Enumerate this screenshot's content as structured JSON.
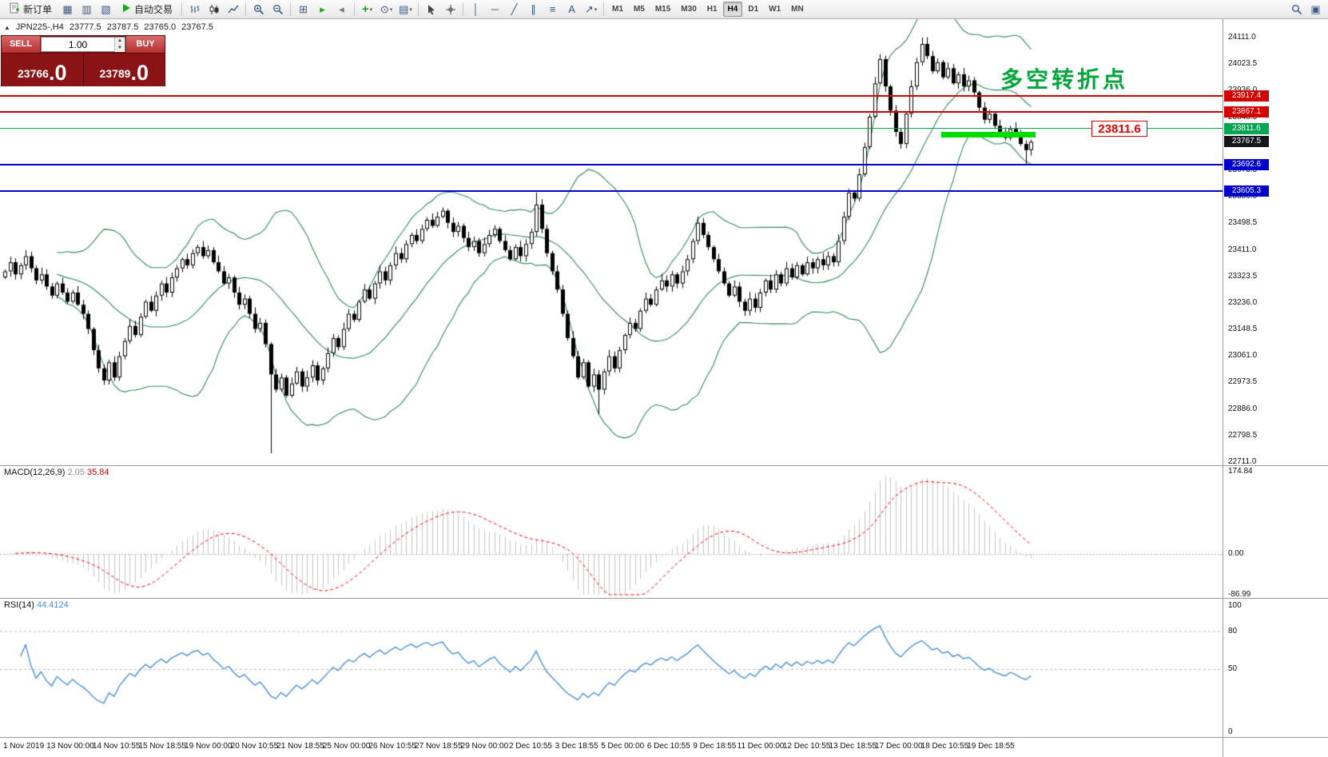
{
  "toolbar": {
    "new_order_label": "新订单",
    "auto_trading_label": "自动交易",
    "timeframes": [
      "M1",
      "M5",
      "M15",
      "M30",
      "H1",
      "H4",
      "D1",
      "W1",
      "MN"
    ],
    "active_timeframe": "H4",
    "items": [
      {
        "type": "button",
        "name": "new-order-button",
        "svg": "order",
        "label": "新订单"
      },
      {
        "type": "icon",
        "name": "market-watch-icon",
        "glyph": "▦"
      },
      {
        "type": "icon",
        "name": "data-window-icon",
        "glyph": "▥"
      },
      {
        "type": "icon",
        "name": "navigator-icon",
        "glyph": "▧"
      },
      {
        "type": "button",
        "name": "auto-trading-button",
        "svg": "play",
        "label": "自动交易"
      },
      {
        "type": "sep"
      },
      {
        "type": "icon",
        "name": "bar-chart-icon",
        "svg": "bars"
      },
      {
        "type": "icon",
        "name": "candlestick-chart-icon",
        "svg": "candles"
      },
      {
        "type": "icon",
        "name": "line-chart-icon",
        "svg": "linechart"
      },
      {
        "type": "sep"
      },
      {
        "type": "icon",
        "name": "zoom-in-icon",
        "svg": "zoomin"
      },
      {
        "type": "icon",
        "name": "zoom-out-icon",
        "svg": "zoomout"
      },
      {
        "type": "sep"
      },
      {
        "type": "icon",
        "name": "tile-windows-icon",
        "glyph": "⊞"
      },
      {
        "type": "icon",
        "name": "auto-scroll-icon",
        "glyph": "▸",
        "color": "#1fa31f"
      },
      {
        "type": "icon",
        "name": "chart-shift-icon",
        "glyph": "◂",
        "color": "#777777"
      },
      {
        "type": "sep"
      },
      {
        "type": "icon",
        "name": "indicators-icon",
        "glyph": "+",
        "color": "#1fa31f",
        "caret": true
      },
      {
        "type": "icon",
        "name": "periods-icon",
        "glyph": "⊙",
        "caret": true
      },
      {
        "type": "icon",
        "name": "templates-icon",
        "glyph": "▤",
        "caret": true
      },
      {
        "type": "sep"
      },
      {
        "type": "icon",
        "name": "cursor-icon",
        "svg": "cursor"
      },
      {
        "type": "icon",
        "name": "crosshair-icon",
        "svg": "crosshair"
      },
      {
        "type": "sep"
      },
      {
        "type": "icon",
        "name": "vertical-line-icon",
        "glyph": "│"
      },
      {
        "type": "icon",
        "name": "horizontal-line-icon",
        "glyph": "─"
      },
      {
        "type": "icon",
        "name": "trendline-icon",
        "glyph": "╱"
      },
      {
        "type": "icon",
        "name": "channel-icon",
        "glyph": "∥"
      },
      {
        "type": "icon",
        "name": "fibonacci-icon",
        "glyph": "≡"
      },
      {
        "type": "icon",
        "name": "text-icon",
        "glyph": "A"
      },
      {
        "type": "icon",
        "name": "arrows-icon",
        "glyph": "↗",
        "caret": true
      },
      {
        "type": "sep"
      },
      {
        "type": "timeframes"
      },
      {
        "type": "spacer"
      },
      {
        "type": "icon",
        "name": "search-icon",
        "svg": "search"
      },
      {
        "type": "icon",
        "name": "window-list-icon",
        "glyph": "▣"
      }
    ]
  },
  "symbol_info": {
    "symbol": "JPN225-,H4",
    "open": "23777.5",
    "high": "23787.5",
    "low": "23765.0",
    "close": "23767.5"
  },
  "trade_panel": {
    "sell_label": "SELL",
    "buy_label": "BUY",
    "volume": "1.00",
    "sell_price_main": "23766",
    "sell_price_frac": ".0",
    "buy_price_main": "23789",
    "buy_price_frac": ".0"
  },
  "annotations": {
    "turning_point_text": "多空转折点",
    "price_callout": "23811.6"
  },
  "levels": {
    "lines": [
      {
        "value": 23917.4,
        "color": "#d40000",
        "width": 2
      },
      {
        "value": 23867.1,
        "color": "#d40000",
        "width": 2
      },
      {
        "value": 23811.6,
        "color": "#00a651",
        "width": 1.5
      },
      {
        "value": 23692.6,
        "color": "#0000cd",
        "width": 2
      },
      {
        "value": 23605.3,
        "color": "#0000cd",
        "width": 2
      }
    ]
  },
  "price_axis": {
    "badges": [
      {
        "value": 23917.4,
        "label": "23917.4",
        "color": "#d40000"
      },
      {
        "value": 23867.1,
        "label": "23867.1",
        "color": "#d40000"
      },
      {
        "value": 23811.6,
        "label": "23811.6",
        "color": "#00a651"
      },
      {
        "value": 23767.5,
        "label": "23767.5",
        "color": "#15151c"
      },
      {
        "value": 23692.6,
        "label": "23692.6",
        "color": "#0000cd"
      },
      {
        "value": 23605.3,
        "label": "23605.3",
        "color": "#0000cd"
      }
    ]
  },
  "indicators": {
    "macd_name": "MACD(12,26,9)",
    "macd_value_main": "2.05",
    "macd_value_signal": "35.84",
    "macd_axis": [
      174.84,
      0,
      -86.99
    ],
    "rsi_name": "RSI(14)",
    "rsi_value": "44.4124",
    "rsi_axis": [
      100,
      80,
      50,
      0
    ],
    "rsi_levels": [
      80,
      50
    ]
  },
  "colors": {
    "bull": "#ffffff",
    "bear": "#000000",
    "candle_outline": "#000000",
    "bollinger": "#2E8B57",
    "macd_histogram": "#c4c4c4",
    "macd_signal": "#ff0000",
    "rsi_line": "#4a90d8",
    "annotation_green": "#00a63c",
    "callout_red": "#e00000",
    "highlight_green": "#00dd00"
  },
  "chart_data": {
    "type": "candlestick",
    "symbol": "JPN225-",
    "timeframe": "H4",
    "overlays": [
      "Bollinger Bands (20,2)"
    ],
    "y_ticks": [
      "24111.0",
      "24023.5",
      "23936.0",
      "23848.5",
      "23761.0",
      "23673.5",
      "23586.0",
      "23498.5",
      "23411.0",
      "23323.5",
      "23236.0",
      "23148.5",
      "23061.0",
      "22973.5",
      "22886.0",
      "22798.5",
      "22711.0"
    ],
    "x_labels": [
      "1 Nov 2019",
      "13 Nov 00:00",
      "14 Nov 10:55",
      "15 Nov 18:55",
      "19 Nov 00:00",
      "20 Nov 10:55",
      "21 Nov 18:55",
      "25 Nov 00:00",
      "26 Nov 10:55",
      "27 Nov 18:55",
      "29 Nov 00:00",
      "2 Dec 10:55",
      "3 Dec 18:55",
      "5 Dec 00:00",
      "6 Dec 10:55",
      "9 Dec 18:55",
      "11 Dec 00:00",
      "12 Dec 10:55",
      "13 Dec 18:55",
      "17 Dec 00:00",
      "18 Dec 10:55",
      "19 Dec 18:55"
    ],
    "first_open": 23320,
    "closes": [
      23340,
      23370,
      23330,
      23360,
      23390,
      23350,
      23310,
      23330,
      23290,
      23260,
      23300,
      23270,
      23240,
      23270,
      23230,
      23200,
      23150,
      23080,
      23020,
      22980,
      23040,
      22990,
      23060,
      23110,
      23160,
      23130,
      23190,
      23240,
      23210,
      23260,
      23300,
      23270,
      23320,
      23350,
      23380,
      23360,
      23400,
      23420,
      23390,
      23410,
      23370,
      23340,
      23300,
      23320,
      23270,
      23230,
      23250,
      23200,
      23150,
      23170,
      23100,
      23000,
      22950,
      22990,
      22930,
      22970,
      23010,
      22960,
      22990,
      23030,
      22980,
      23020,
      23070,
      23120,
      23090,
      23150,
      23200,
      23180,
      23240,
      23280,
      23250,
      23300,
      23340,
      23310,
      23360,
      23400,
      23380,
      23430,
      23460,
      23440,
      23480,
      23510,
      23490,
      23520,
      23540,
      23500,
      23470,
      23490,
      23450,
      23420,
      23440,
      23400,
      23430,
      23460,
      23480,
      23440,
      23410,
      23380,
      23420,
      23390,
      23430,
      23470,
      23560,
      23480,
      23400,
      23340,
      23280,
      23200,
      23120,
      23060,
      22990,
      23040,
      22960,
      23000,
      22950,
      23010,
      23060,
      23020,
      23080,
      23130,
      23170,
      23150,
      23210,
      23250,
      23230,
      23280,
      23310,
      23290,
      23330,
      23300,
      23340,
      23380,
      23440,
      23500,
      23460,
      23420,
      23380,
      23340,
      23300,
      23260,
      23290,
      23240,
      23210,
      23250,
      23220,
      23270,
      23310,
      23280,
      23330,
      23300,
      23350,
      23320,
      23360,
      23330,
      23370,
      23350,
      23380,
      23360,
      23390,
      23370,
      23440,
      23520,
      23600,
      23580,
      23660,
      23750,
      23850,
      23960,
      24040,
      23950,
      23870,
      23800,
      23760,
      23860,
      23950,
      24030,
      24090,
      24050,
      24000,
      24030,
      23980,
      24010,
      23960,
      23990,
      23950,
      23970,
      23930,
      23880,
      23840,
      23860,
      23820,
      23800,
      23780,
      23810,
      23790,
      23760,
      23740,
      23767.5
    ],
    "wick_overrides": {
      "51": {
        "low": 22740
      },
      "102": {
        "high": 23600
      },
      "114": {
        "low": 22870
      },
      "176": {
        "high": 24111
      },
      "196": {
        "low": 23690
      }
    },
    "bollinger": {
      "period": 20,
      "deviation": 2
    }
  }
}
